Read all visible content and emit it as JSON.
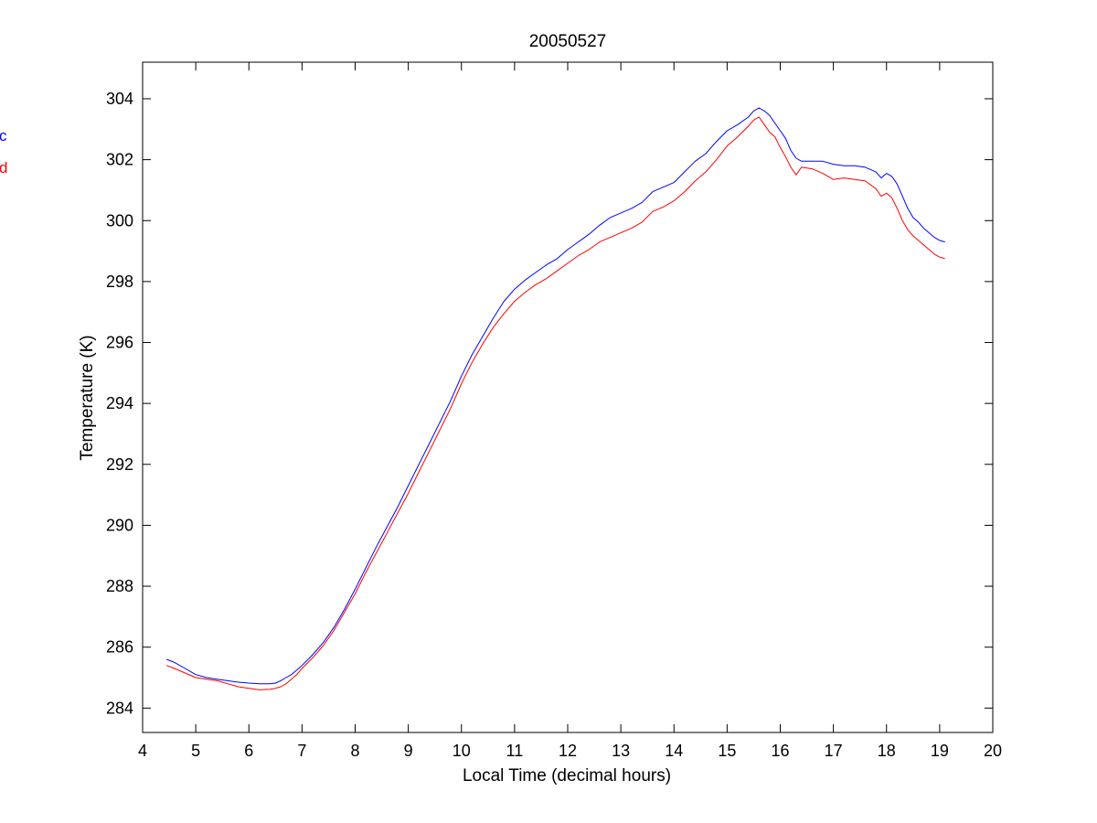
{
  "chart_data": {
    "type": "line",
    "title": "20050527",
    "xlabel": "Local Time (decimal hours)",
    "ylabel": "Temperature (K)",
    "xlim": [
      4,
      20
    ],
    "ylim": [
      283.2,
      305.2
    ],
    "xticks": [
      4,
      5,
      6,
      7,
      8,
      9,
      10,
      11,
      12,
      13,
      14,
      15,
      16,
      17,
      18,
      19,
      20
    ],
    "yticks": [
      284,
      286,
      288,
      290,
      292,
      294,
      296,
      298,
      300,
      302,
      304
    ],
    "grid": false,
    "legend_position": "left-outside-top",
    "series": [
      {
        "name": "c",
        "color": "#0000ff",
        "x": [
          4.45,
          4.6,
          4.8,
          5.0,
          5.2,
          5.4,
          5.6,
          5.8,
          6.0,
          6.2,
          6.4,
          6.5,
          6.6,
          6.7,
          6.8,
          6.9,
          7.0,
          7.2,
          7.4,
          7.6,
          7.8,
          8.0,
          8.2,
          8.4,
          8.6,
          8.8,
          9.0,
          9.2,
          9.4,
          9.6,
          9.8,
          10.0,
          10.2,
          10.4,
          10.6,
          10.8,
          11.0,
          11.2,
          11.4,
          11.6,
          11.8,
          12.0,
          12.2,
          12.4,
          12.6,
          12.8,
          13.0,
          13.2,
          13.4,
          13.6,
          13.8,
          14.0,
          14.2,
          14.4,
          14.6,
          14.8,
          15.0,
          15.2,
          15.4,
          15.5,
          15.6,
          15.7,
          15.8,
          15.9,
          16.0,
          16.1,
          16.2,
          16.3,
          16.4,
          16.6,
          16.8,
          17.0,
          17.2,
          17.4,
          17.6,
          17.8,
          17.9,
          18.0,
          18.1,
          18.2,
          18.3,
          18.4,
          18.5,
          18.6,
          18.7,
          18.8,
          18.9,
          19.0,
          19.1
        ],
        "y": [
          285.6,
          285.5,
          285.3,
          285.1,
          285.0,
          284.95,
          284.9,
          284.85,
          284.82,
          284.8,
          284.8,
          284.82,
          284.9,
          285.0,
          285.1,
          285.25,
          285.4,
          285.75,
          286.15,
          286.65,
          287.25,
          287.9,
          288.6,
          289.3,
          289.95,
          290.6,
          291.3,
          292.0,
          292.7,
          293.4,
          294.1,
          294.9,
          295.6,
          296.2,
          296.8,
          297.35,
          297.75,
          298.05,
          298.3,
          298.55,
          298.75,
          299.05,
          299.3,
          299.55,
          299.85,
          300.1,
          300.25,
          300.4,
          300.6,
          300.95,
          301.1,
          301.25,
          301.6,
          301.95,
          302.2,
          302.6,
          302.95,
          303.15,
          303.4,
          303.6,
          303.7,
          303.6,
          303.45,
          303.2,
          302.95,
          302.7,
          302.3,
          302.05,
          301.95,
          301.95,
          301.95,
          301.85,
          301.8,
          301.8,
          301.75,
          301.6,
          301.4,
          301.55,
          301.45,
          301.2,
          300.8,
          300.4,
          300.1,
          299.95,
          299.75,
          299.6,
          299.45,
          299.35,
          299.3
        ]
      },
      {
        "name": "d",
        "color": "#ff0000",
        "x": [
          4.45,
          4.6,
          4.8,
          5.0,
          5.2,
          5.4,
          5.6,
          5.8,
          6.0,
          6.2,
          6.4,
          6.5,
          6.6,
          6.7,
          6.8,
          6.9,
          7.0,
          7.2,
          7.4,
          7.6,
          7.8,
          8.0,
          8.2,
          8.4,
          8.6,
          8.8,
          9.0,
          9.2,
          9.4,
          9.6,
          9.8,
          10.0,
          10.2,
          10.4,
          10.6,
          10.8,
          11.0,
          11.2,
          11.4,
          11.6,
          11.8,
          12.0,
          12.2,
          12.4,
          12.6,
          12.8,
          13.0,
          13.2,
          13.4,
          13.6,
          13.8,
          14.0,
          14.2,
          14.4,
          14.6,
          14.8,
          15.0,
          15.2,
          15.4,
          15.5,
          15.6,
          15.7,
          15.8,
          15.9,
          16.0,
          16.1,
          16.2,
          16.3,
          16.4,
          16.6,
          16.8,
          17.0,
          17.2,
          17.4,
          17.6,
          17.8,
          17.9,
          18.0,
          18.1,
          18.2,
          18.3,
          18.4,
          18.5,
          18.6,
          18.7,
          18.8,
          18.9,
          19.0,
          19.1
        ],
        "y": [
          285.4,
          285.3,
          285.15,
          285.0,
          284.95,
          284.9,
          284.8,
          284.7,
          284.65,
          284.6,
          284.62,
          284.65,
          284.7,
          284.8,
          284.95,
          285.1,
          285.3,
          285.65,
          286.05,
          286.55,
          287.15,
          287.75,
          288.45,
          289.1,
          289.75,
          290.4,
          291.05,
          291.75,
          292.45,
          293.15,
          293.85,
          294.65,
          295.35,
          295.95,
          296.5,
          296.95,
          297.35,
          297.65,
          297.9,
          298.1,
          298.35,
          298.6,
          298.85,
          299.05,
          299.3,
          299.45,
          299.6,
          299.75,
          299.95,
          300.3,
          300.45,
          300.65,
          300.95,
          301.3,
          301.6,
          302.0,
          302.45,
          302.75,
          303.1,
          303.3,
          303.4,
          303.15,
          302.9,
          302.75,
          302.4,
          302.1,
          301.75,
          301.5,
          301.75,
          301.7,
          301.55,
          301.35,
          301.4,
          301.35,
          301.3,
          301.05,
          300.8,
          300.9,
          300.75,
          300.4,
          300.0,
          299.7,
          299.5,
          299.35,
          299.2,
          299.05,
          298.9,
          298.8,
          298.75
        ]
      }
    ]
  }
}
